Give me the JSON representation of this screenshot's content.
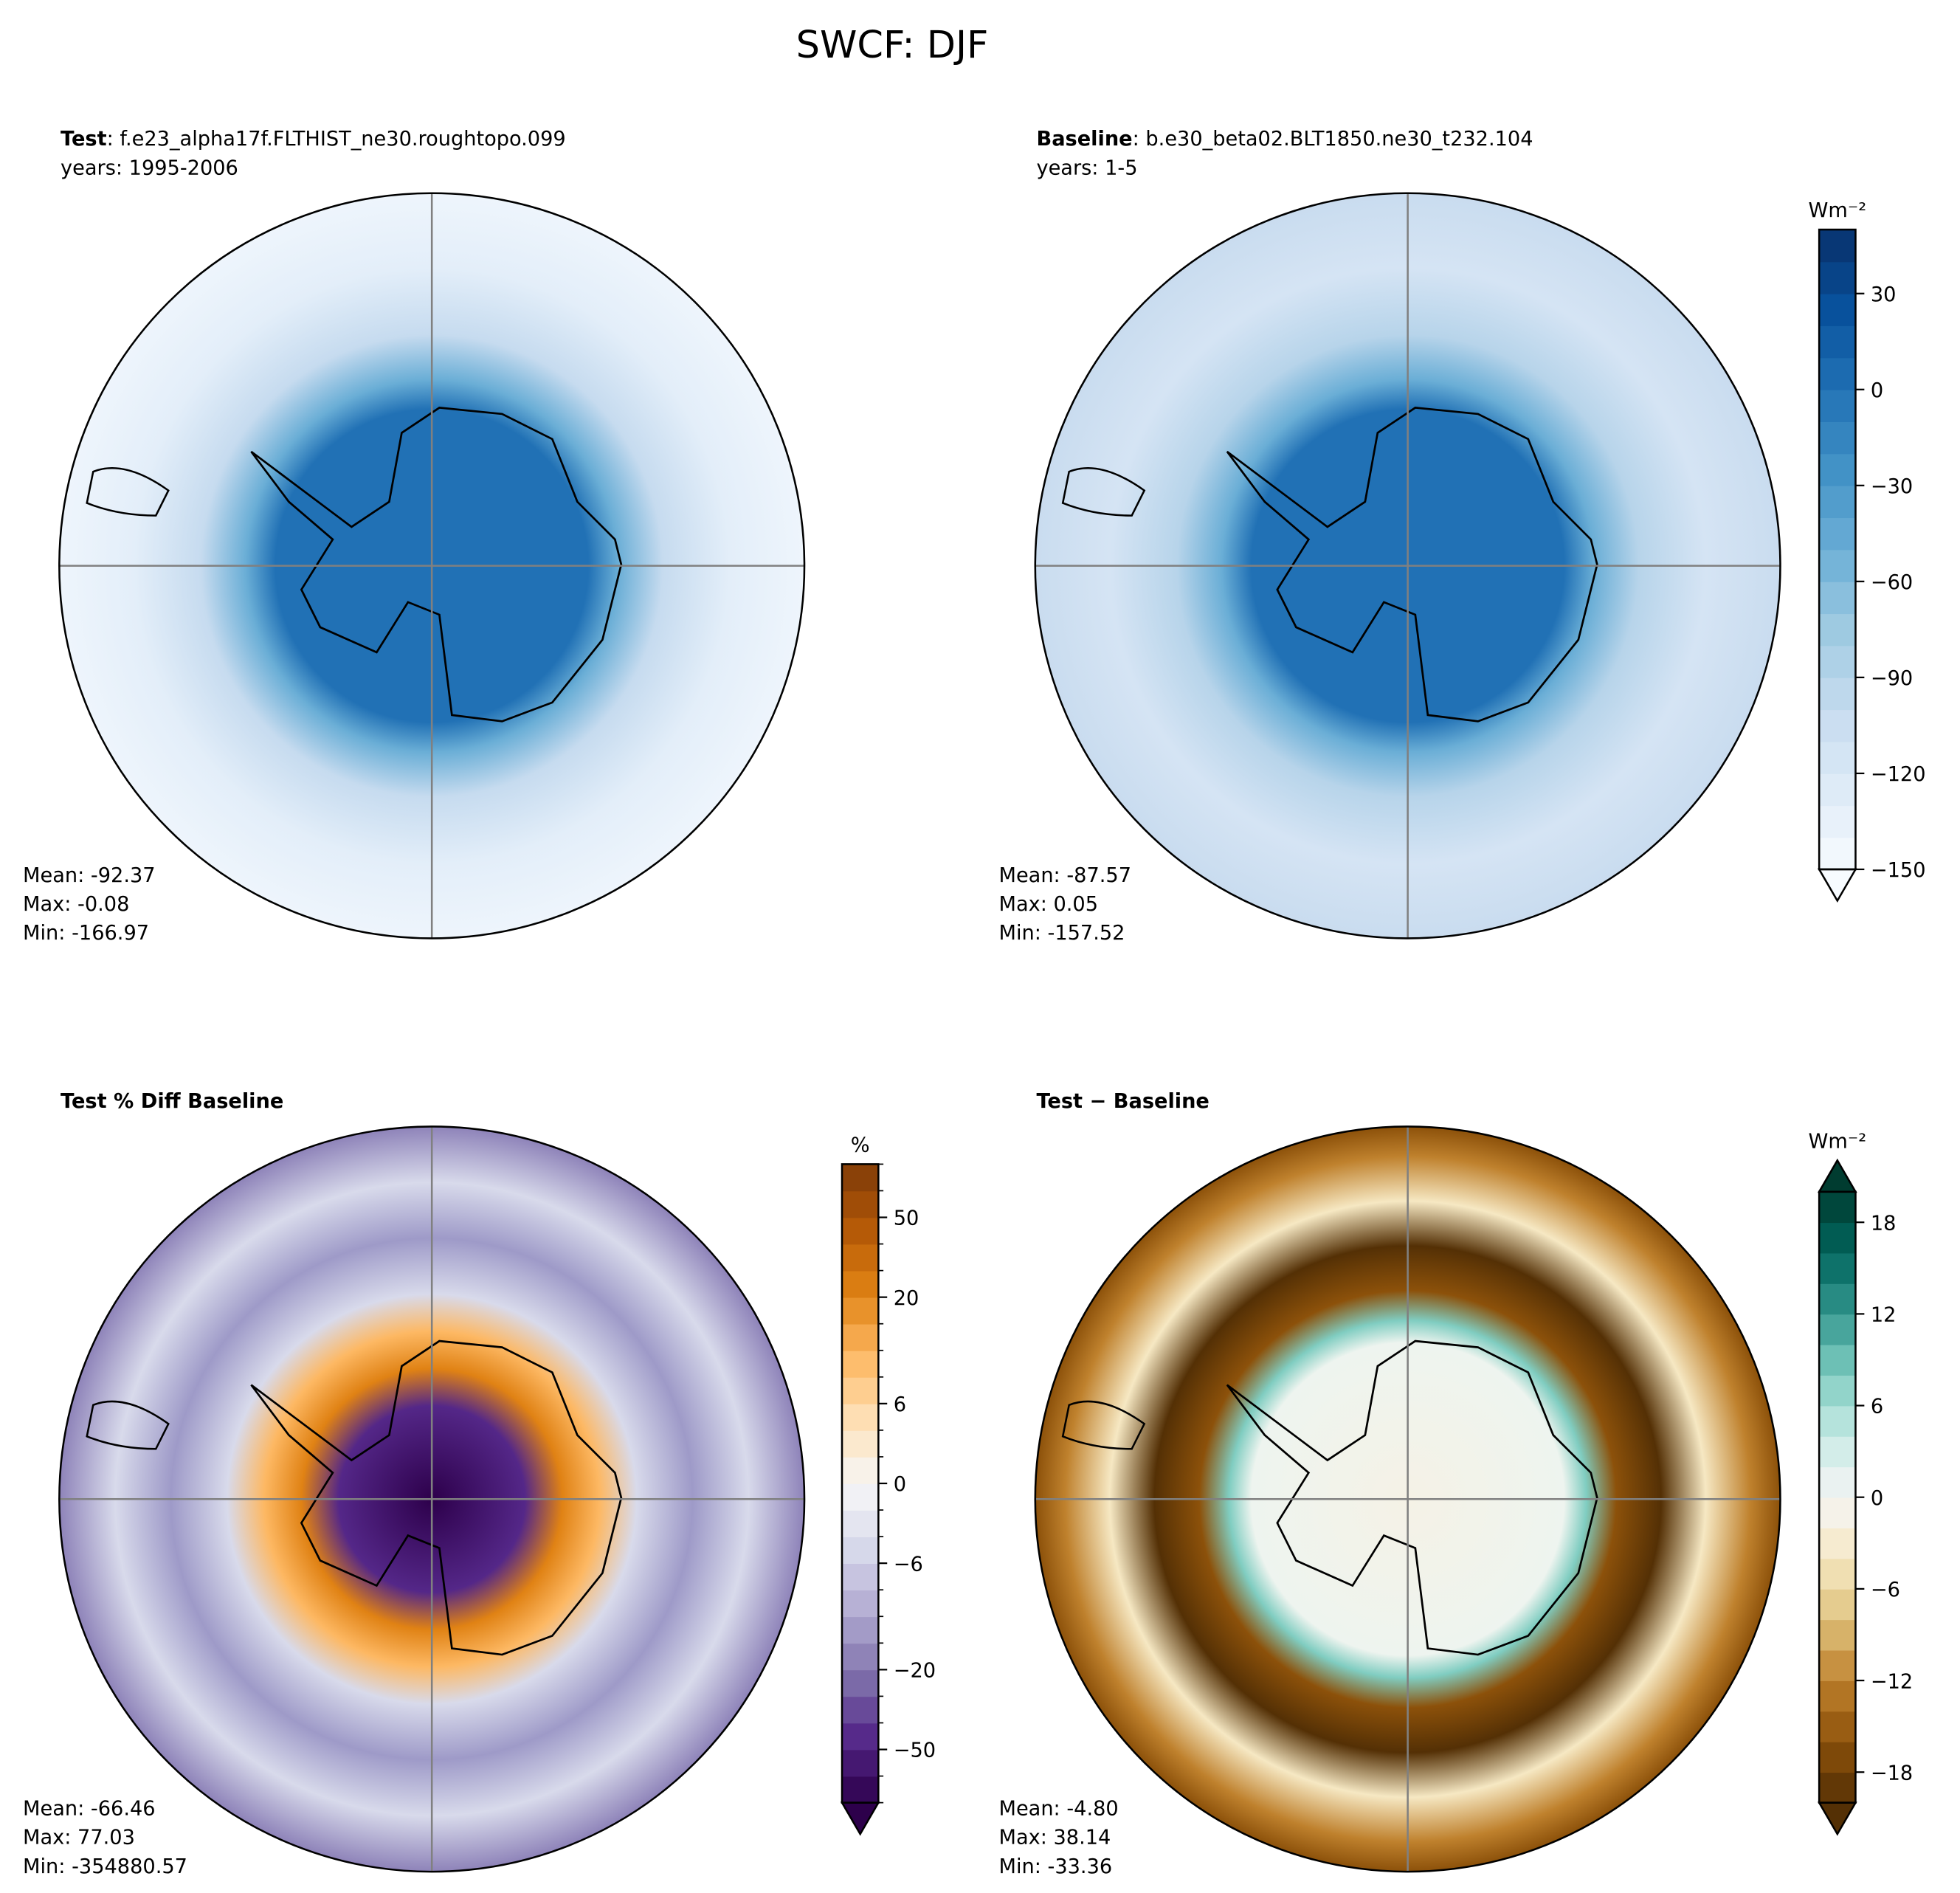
{
  "chart_data": {
    "title": "SWCF: DJF",
    "type": "heatmap",
    "projection": "south-polar-stereographic",
    "panels": [
      {
        "id": "test",
        "title_bold": "Test",
        "title_rest": ": f.e23_alpha17f.FLTHIST_ne30.roughtopo.099",
        "subtitle": "years: 1995-2006",
        "stats": {
          "mean": "Mean: -92.37",
          "max": "Max: -0.08",
          "min": "Min: -166.97"
        },
        "colorbar": null
      },
      {
        "id": "baseline",
        "title_bold": "Baseline",
        "title_rest": ": b.e30_beta02.BLT1850.ne30_t232.104",
        "subtitle": "years: 1-5",
        "stats": {
          "mean": "Mean: -87.57",
          "max": "Max:  0.05",
          "min": "Min: -157.52"
        },
        "colorbar": {
          "label": "Wm⁻²",
          "colormap": "Blues",
          "levels_min": -150,
          "levels_max": 50,
          "step": 10,
          "ticks": [
            30,
            0,
            -30,
            -60,
            -90,
            -120,
            -150
          ],
          "tick_labels": [
            "30",
            "0",
            "−30",
            "−60",
            "−90",
            "−120",
            "−150"
          ],
          "extend": "min"
        }
      },
      {
        "id": "pct-diff",
        "title_bold": "Test % Diff Baseline",
        "title_rest": "",
        "subtitle": "",
        "stats": {
          "mean": "Mean: -66.46",
          "max": "Max: 77.03",
          "min": "Min: -354880.57"
        },
        "colorbar": {
          "label": "%",
          "colormap": "PuOr_r",
          "levels": [
            -100,
            -70,
            -50,
            -40,
            -30,
            -20,
            -15,
            -10,
            -8,
            -6,
            -4,
            -2,
            0,
            2,
            4,
            6,
            8,
            10,
            15,
            20,
            30,
            40,
            50,
            70,
            100
          ],
          "ticks": [
            50,
            20,
            6,
            0,
            -6,
            -20,
            -50
          ],
          "tick_labels": [
            "50",
            "20",
            "6",
            "0",
            "−6",
            "−20",
            "−50"
          ],
          "extend": "min"
        }
      },
      {
        "id": "diff",
        "title_bold": "Test − Baseline",
        "title_rest": "",
        "subtitle": "",
        "stats": {
          "mean": "Mean: -4.80",
          "max": "Max: 38.14",
          "min": "Min: -33.36"
        },
        "colorbar": {
          "label": "Wm⁻²",
          "colormap": "BrBG",
          "levels_min": -20,
          "levels_max": 20,
          "step": 2,
          "ticks": [
            18,
            12,
            6,
            0,
            -6,
            -12,
            -18
          ],
          "tick_labels": [
            "18",
            "12",
            "6",
            "0",
            "−6",
            "−12",
            "−18"
          ],
          "extend": "both"
        }
      }
    ]
  }
}
